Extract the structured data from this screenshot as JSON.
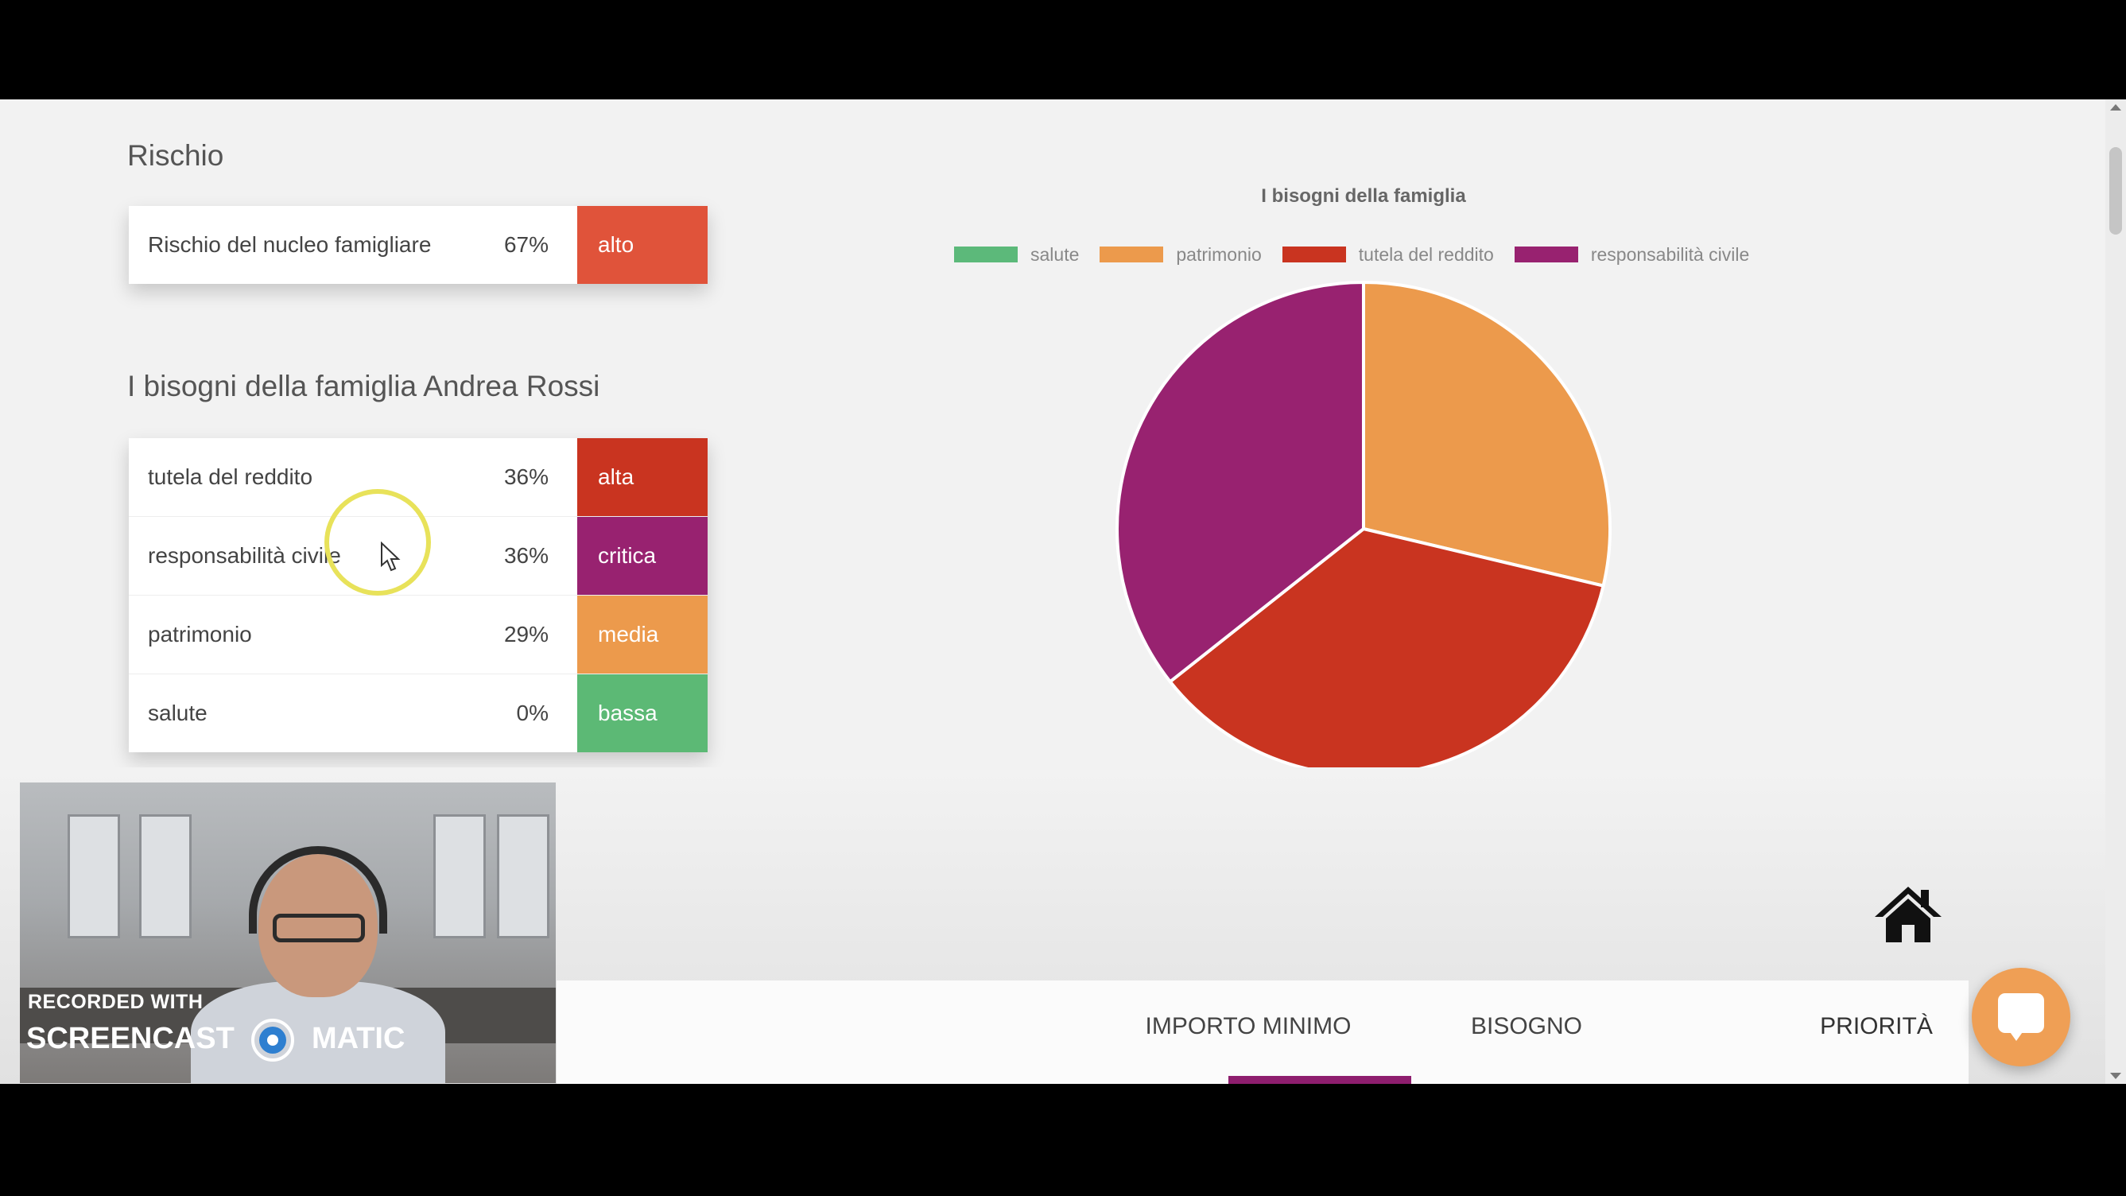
{
  "risk": {
    "title": "Rischio",
    "row": {
      "label": "Rischio del nucleo famigliare",
      "pct": "67%",
      "level": "alto",
      "color": "#e0533a"
    }
  },
  "needs": {
    "title": "I bisogni della famiglia Andrea Rossi",
    "rows": [
      {
        "label": "tutela del reddito",
        "pct": "36%",
        "level": "alta",
        "color": "#c93420"
      },
      {
        "label": "responsabilità civile",
        "pct": "36%",
        "level": "critica",
        "color": "#982270"
      },
      {
        "label": "patrimonio",
        "pct": "29%",
        "level": "media",
        "color": "#ec9a4c"
      },
      {
        "label": "salute",
        "pct": "0%",
        "level": "bassa",
        "color": "#5cb975"
      }
    ]
  },
  "chart_data": {
    "type": "pie",
    "title": "I bisogni della famiglia",
    "legend_position": "top",
    "labels": [
      "salute",
      "patrimonio",
      "tutela del reddito",
      "responsabilità civile"
    ],
    "values": [
      0,
      29,
      36,
      36
    ],
    "colors": [
      "#5cb97a",
      "#ec9a4c",
      "#c93420",
      "#982270"
    ]
  },
  "tabs": [
    {
      "label": "IMPORTO MINIMO",
      "active": false
    },
    {
      "label": "BISOGNO",
      "active": false
    },
    {
      "label": "PRIORITÀ",
      "active": true
    }
  ],
  "accent_color": "#8e1e6e",
  "icons": {
    "home": "home-icon",
    "chat": "chat-icon"
  },
  "watermark": {
    "line1": "RECORDED WITH",
    "line2a": "SCREENCAST",
    "line2b": "MATIC"
  }
}
